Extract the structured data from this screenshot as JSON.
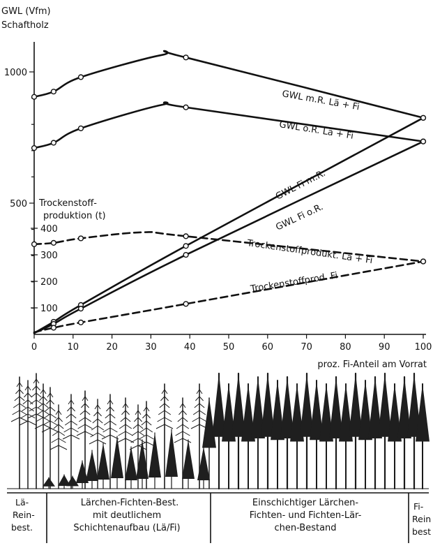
{
  "chart_data": {
    "type": "line",
    "ylabel_left_top": "GWL (Vfm)",
    "ylabel_left_sub": "Schaftholz",
    "ylabel_inner_1": "Trockenstoff-",
    "ylabel_inner_2": "produktion (t)",
    "xlabel": "proz. Fi-Anteil am Vorrat",
    "xlim": [
      0,
      100
    ],
    "xticks": [
      0,
      10,
      20,
      30,
      40,
      50,
      60,
      70,
      80,
      90,
      100
    ],
    "yticks_gwl": [
      {
        "value": 500,
        "label": "500"
      },
      {
        "value": 1000,
        "label": "1000"
      }
    ],
    "yticks_trocken": [
      {
        "value": 100,
        "label": "100"
      },
      {
        "value": 200,
        "label": "200"
      },
      {
        "value": 300,
        "label": "300"
      },
      {
        "value": 400,
        "label": "400"
      }
    ],
    "series": [
      {
        "name": "GWL m.R. Lä + Fi",
        "axis": "gwl",
        "style": "solid",
        "x": [
          0,
          5,
          12,
          33,
          39,
          100
        ],
        "y": [
          905,
          925,
          980,
          1065,
          1055,
          825
        ],
        "markers": [
          0,
          5,
          12,
          39,
          100
        ]
      },
      {
        "name": "GWL o.R. Lä + Fi",
        "axis": "gwl",
        "style": "solid",
        "x": [
          0,
          5,
          12,
          33,
          39,
          100
        ],
        "y": [
          710,
          730,
          785,
          875,
          865,
          735
        ],
        "markers": [
          0,
          5,
          12,
          39,
          100
        ]
      },
      {
        "name": "GWL Fi m.R.",
        "axis": "gwl",
        "style": "solid",
        "x": [
          0,
          5,
          12,
          39,
          100
        ],
        "y": [
          5,
          48,
          112,
          337,
          825
        ],
        "markers": [
          5,
          12,
          39,
          100
        ]
      },
      {
        "name": "GWL Fi o.R.",
        "axis": "gwl",
        "style": "solid",
        "x": [
          0,
          5,
          12,
          39,
          100
        ],
        "y": [
          5,
          40,
          98,
          303,
          735
        ],
        "markers": [
          5,
          12,
          39,
          100
        ]
      },
      {
        "name": "Trockenstoffprodukt. Lä + Fi",
        "axis": "trocken",
        "style": "dashed",
        "x": [
          0,
          5,
          12,
          28,
          39,
          100
        ],
        "y": [
          340,
          345,
          362,
          385,
          370,
          275
        ],
        "markers": [
          0,
          5,
          12,
          39,
          100
        ]
      },
      {
        "name": "Trockenstoffprod. Fi",
        "axis": "trocken",
        "style": "dashed",
        "x": [
          0,
          5,
          12,
          39,
          100
        ],
        "y": [
          8,
          25,
          45,
          115,
          275
        ],
        "markers": [
          5,
          12,
          39,
          100
        ]
      }
    ]
  },
  "segments": [
    {
      "line1": "Lä-",
      "line2": "Rein-",
      "line3": "best."
    },
    {
      "line1": "Lärchen-Fichten-Best.",
      "line2": "mit deutlichem",
      "line3": "Schichtenaufbau (Lä/Fi)"
    },
    {
      "line1": "Einschichtiger Lärchen-",
      "line2": "Fichten- und Fichten-Lär-",
      "line3": "chen-Bestand"
    },
    {
      "line1": "Fi-",
      "line2": "Rein",
      "line3": "best"
    }
  ]
}
